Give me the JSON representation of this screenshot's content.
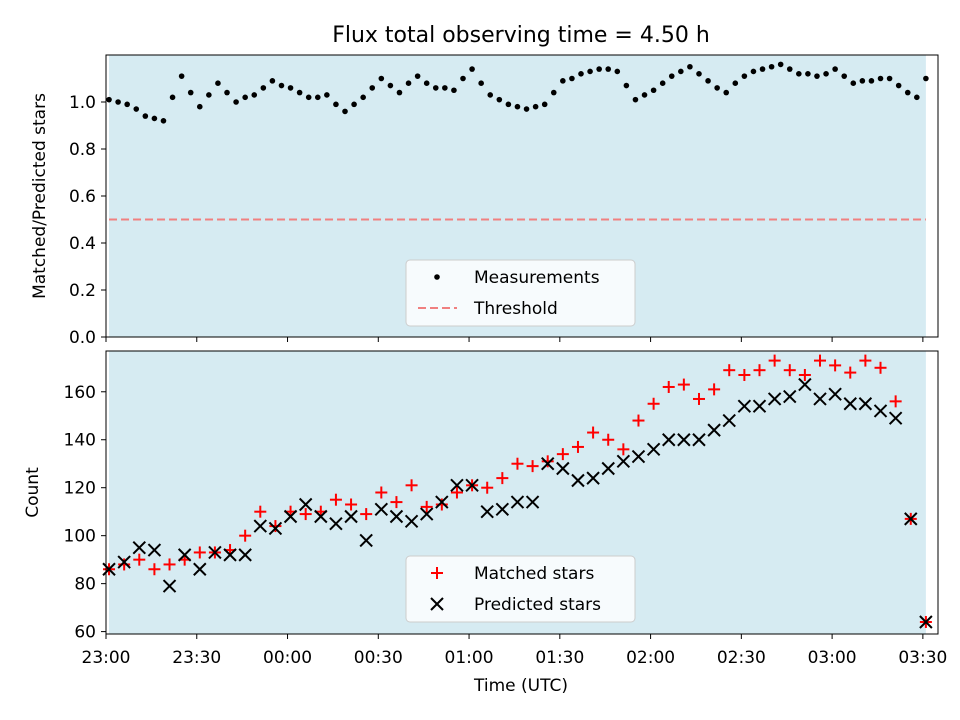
{
  "chart_data": [
    {
      "type": "scatter",
      "title": "Flux total observing time = 4.50 h",
      "ylabel": "Matched/Predicted stars",
      "xlabel": "",
      "ylim": [
        0,
        1.2
      ],
      "yticks": [
        0.0,
        0.2,
        0.4,
        0.6,
        0.8,
        1.0
      ],
      "ytick_labels": [
        "0.0",
        "0.2",
        "0.4",
        "0.6",
        "0.8",
        "1.0"
      ],
      "xlim": [
        "23:00",
        "03:35"
      ],
      "x_ticks_shown": [
        "23:00",
        "23:30",
        "00:00",
        "00:30",
        "01:00",
        "01:30",
        "02:00",
        "02:30",
        "03:00",
        "03:30"
      ],
      "shaded_span": {
        "start": "23:01",
        "end": "03:31",
        "color": "#add8e6"
      },
      "legend": {
        "position": "lower-center",
        "entries": [
          "Measurements",
          "Threshold"
        ]
      },
      "threshold": {
        "name": "Threshold",
        "value": 0.5,
        "color": "#f08080",
        "style": "dashed"
      },
      "series": [
        {
          "name": "Measurements",
          "marker": "dot",
          "color": "#000000",
          "x": [
            "23:01",
            "23:04",
            "23:07",
            "23:10",
            "23:13",
            "23:16",
            "23:19",
            "23:22",
            "23:25",
            "23:28",
            "23:31",
            "23:34",
            "23:37",
            "23:40",
            "23:43",
            "23:46",
            "23:49",
            "23:52",
            "23:55",
            "23:58",
            "00:01",
            "00:04",
            "00:07",
            "00:10",
            "00:13",
            "00:16",
            "00:19",
            "00:22",
            "00:25",
            "00:28",
            "00:31",
            "00:34",
            "00:37",
            "00:40",
            "00:43",
            "00:46",
            "00:49",
            "00:52",
            "00:55",
            "00:58",
            "01:01",
            "01:04",
            "01:07",
            "01:10",
            "01:13",
            "01:16",
            "01:19",
            "01:22",
            "01:25",
            "01:28",
            "01:31",
            "01:34",
            "01:37",
            "01:40",
            "01:43",
            "01:46",
            "01:49",
            "01:52",
            "01:55",
            "01:58",
            "02:01",
            "02:04",
            "02:07",
            "02:10",
            "02:13",
            "02:16",
            "02:19",
            "02:22",
            "02:25",
            "02:28",
            "02:31",
            "02:34",
            "02:37",
            "02:40",
            "02:43",
            "02:46",
            "02:49",
            "02:52",
            "02:55",
            "02:58",
            "03:01",
            "03:04",
            "03:07",
            "03:10",
            "03:13",
            "03:16",
            "03:19",
            "03:22",
            "03:25",
            "03:28",
            "03:31"
          ],
          "y": [
            1.01,
            1.0,
            0.99,
            0.97,
            0.94,
            0.93,
            0.92,
            1.02,
            1.11,
            1.04,
            0.98,
            1.03,
            1.08,
            1.04,
            1.0,
            1.02,
            1.03,
            1.06,
            1.09,
            1.07,
            1.06,
            1.04,
            1.02,
            1.02,
            1.03,
            0.99,
            0.96,
            0.99,
            1.02,
            1.06,
            1.1,
            1.07,
            1.04,
            1.08,
            1.11,
            1.08,
            1.06,
            1.06,
            1.05,
            1.1,
            1.14,
            1.08,
            1.03,
            1.01,
            0.99,
            0.98,
            0.97,
            0.98,
            0.99,
            1.04,
            1.09,
            1.1,
            1.12,
            1.13,
            1.14,
            1.14,
            1.13,
            1.07,
            1.01,
            1.03,
            1.05,
            1.08,
            1.11,
            1.13,
            1.15,
            1.12,
            1.09,
            1.06,
            1.04,
            1.08,
            1.11,
            1.13,
            1.14,
            1.15,
            1.16,
            1.14,
            1.12,
            1.12,
            1.11,
            1.12,
            1.14,
            1.11,
            1.08,
            1.09,
            1.09,
            1.1,
            1.1,
            1.07,
            1.04,
            1.02,
            1.1
          ]
        }
      ]
    },
    {
      "type": "scatter",
      "title": "",
      "xlabel": "Time (UTC)",
      "ylabel": "Count",
      "ylim": [
        59,
        177
      ],
      "yticks": [
        60,
        80,
        100,
        120,
        140,
        160
      ],
      "xlim": [
        "23:00",
        "03:35"
      ],
      "x_ticks": [
        "23:00",
        "23:30",
        "00:00",
        "00:30",
        "01:00",
        "01:30",
        "02:00",
        "02:30",
        "03:00",
        "03:30"
      ],
      "shaded_span": {
        "start": "23:01",
        "end": "03:31",
        "color": "#add8e6"
      },
      "legend": {
        "position": "lower-center",
        "entries": [
          "Matched stars",
          "Predicted stars"
        ]
      },
      "series": [
        {
          "name": "Matched stars",
          "marker": "plus",
          "color": "#ff0000",
          "x": [
            "23:01",
            "23:06",
            "23:11",
            "23:16",
            "23:21",
            "23:26",
            "23:31",
            "23:36",
            "23:41",
            "23:46",
            "23:51",
            "23:56",
            "24:01",
            "24:06",
            "24:11",
            "24:16",
            "24:21",
            "24:26",
            "24:31",
            "24:36",
            "24:41",
            "24:46",
            "24:51",
            "24:56",
            "25:01",
            "25:06",
            "25:11",
            "25:16",
            "25:21",
            "25:26",
            "25:31",
            "25:36",
            "25:41",
            "25:46",
            "25:51",
            "25:56",
            "26:01",
            "26:06",
            "26:11",
            "26:16",
            "26:21",
            "26:26",
            "26:31",
            "26:36",
            "26:41",
            "26:46",
            "26:51",
            "26:56",
            "27:01",
            "27:06",
            "27:11",
            "27:16",
            "27:21",
            "27:26",
            "27:31"
          ],
          "y": [
            86,
            88,
            90,
            86,
            88,
            90,
            93,
            93,
            94,
            100,
            110,
            104,
            110,
            109,
            110,
            115,
            113,
            109,
            118,
            114,
            121,
            112,
            113,
            118,
            121,
            120,
            124,
            130,
            129,
            131,
            134,
            137,
            143,
            140,
            136,
            148,
            155,
            162,
            163,
            157,
            161,
            169,
            167,
            169,
            173,
            169,
            167,
            173,
            171,
            168,
            173,
            170,
            156,
            107,
            64
          ]
        },
        {
          "name": "Predicted stars",
          "marker": "x",
          "color": "#000000",
          "x": [
            "23:01",
            "23:06",
            "23:11",
            "23:16",
            "23:21",
            "23:26",
            "23:31",
            "23:36",
            "23:41",
            "23:46",
            "23:51",
            "23:56",
            "24:01",
            "24:06",
            "24:11",
            "24:16",
            "24:21",
            "24:26",
            "24:31",
            "24:36",
            "24:41",
            "24:46",
            "24:51",
            "24:56",
            "25:01",
            "25:06",
            "25:11",
            "25:16",
            "25:21",
            "25:26",
            "25:31",
            "25:36",
            "25:41",
            "25:46",
            "25:51",
            "25:56",
            "26:01",
            "26:06",
            "26:11",
            "26:16",
            "26:21",
            "26:26",
            "26:31",
            "26:36",
            "26:41",
            "26:46",
            "26:51",
            "26:56",
            "27:01",
            "27:06",
            "27:11",
            "27:16",
            "27:21",
            "27:26",
            "27:31"
          ],
          "y": [
            86,
            89,
            95,
            94,
            79,
            92,
            86,
            93,
            92,
            92,
            104,
            103,
            108,
            113,
            108,
            105,
            108,
            98,
            111,
            108,
            106,
            109,
            114,
            121,
            121,
            110,
            111,
            114,
            114,
            130,
            128,
            123,
            124,
            128,
            131,
            133,
            136,
            140,
            140,
            140,
            144,
            148,
            154,
            154,
            157,
            158,
            163,
            157,
            159,
            155,
            155,
            152,
            149,
            107,
            64
          ]
        }
      ]
    }
  ]
}
